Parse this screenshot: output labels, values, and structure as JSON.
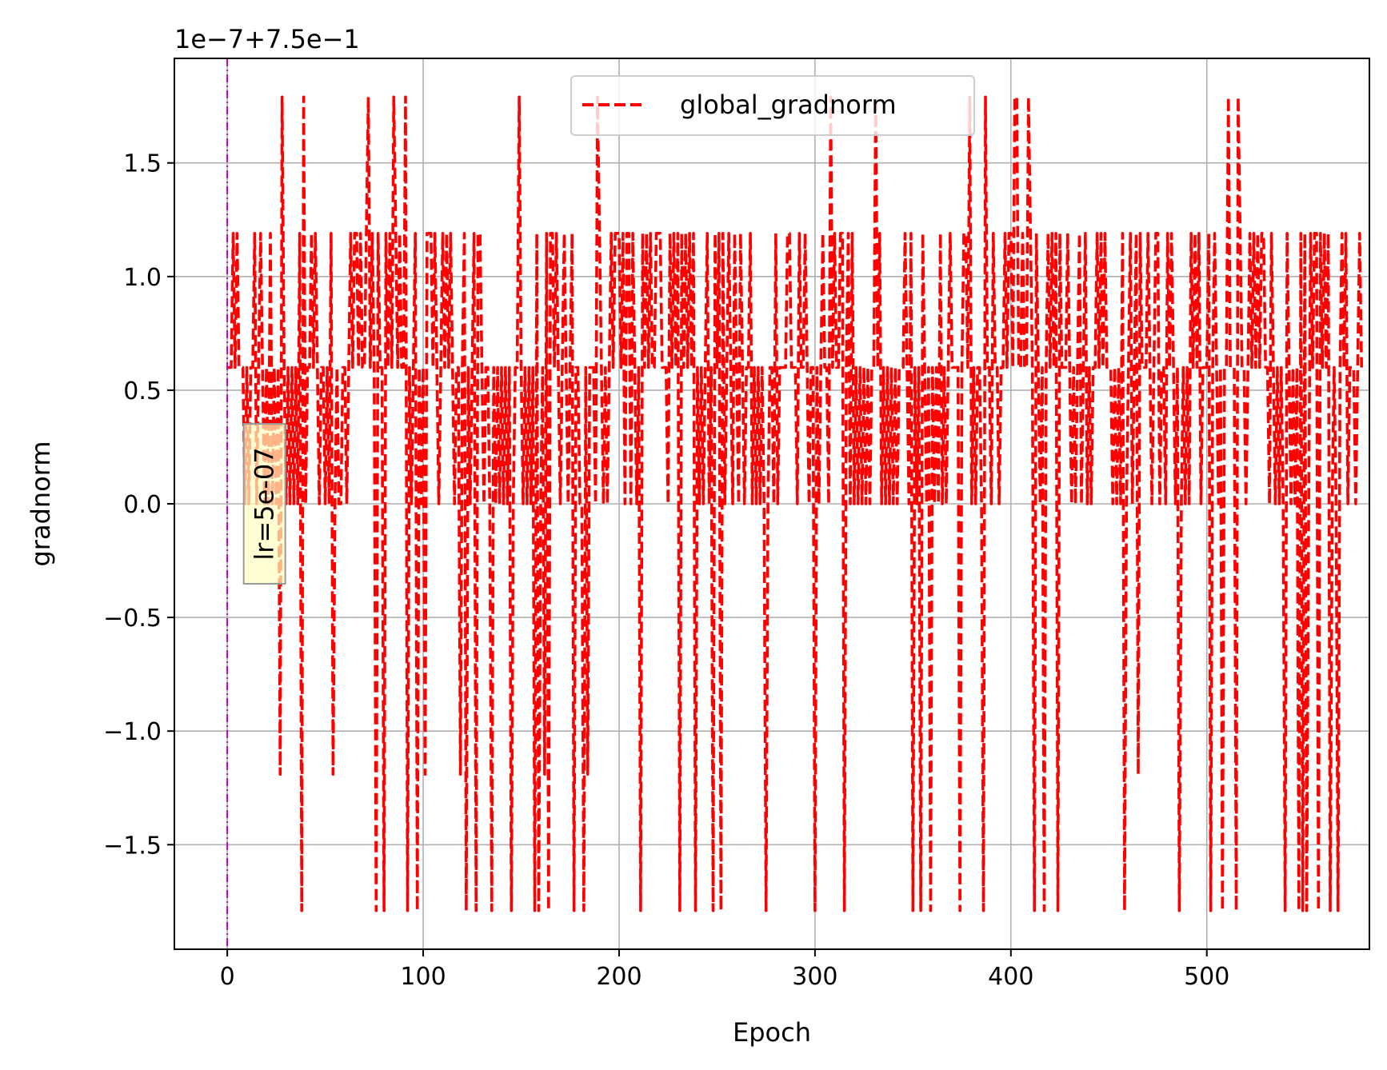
{
  "chart_data": {
    "type": "line",
    "title": "",
    "xlabel": "Epoch",
    "ylabel": "gradnorm",
    "offset_text": "1e−7+7.5e−1",
    "xlim": [
      -27,
      583
    ],
    "ylim": [
      -1.96,
      1.96
    ],
    "xticks": [
      0,
      100,
      200,
      300,
      400,
      500
    ],
    "xtick_labels": [
      "0",
      "100",
      "200",
      "300",
      "400",
      "500"
    ],
    "yticks": [
      -1.5,
      -1.0,
      -0.5,
      0.0,
      0.5,
      1.0,
      1.5
    ],
    "ytick_labels": [
      "−1.5",
      "−1.0",
      "−0.5",
      "0.0",
      "0.5",
      "1.0",
      "1.5"
    ],
    "grid": true,
    "legend_location": "upper center",
    "series": [
      {
        "name": "global_gradnorm",
        "color": "#ff0000",
        "style": "dashed",
        "note_values": "y in units of 1e-7 relative to offset 0.75; values are quantized to levels",
        "levels": [
          -1.79,
          -1.19,
          0.0,
          0.6,
          1.19,
          1.79
        ],
        "level_codes": "3334343332323342343232423231532323232405233434323323241232233234344343345343043304343543433503234032314443432343434323313403234044323320323232323023353232323040231404434323432340332203133325432323434443424424323043434334443332434340434343403232342304340423432432432334232323202332423333443332433432330323433253433440342423232323233534232323232333432403230432303232423234333303443523233205332433233434435533433543043230343434043334323234234232334343433323232402342341433343234423324343230232324343423334034323033533305433234343434433243232320432323040402434404343402320343423332343",
        "x_start": 0,
        "x_step": 1
      }
    ],
    "vline": {
      "x": 0,
      "color": "#bf00bf",
      "style": "dashdot"
    },
    "annotation": {
      "text": "lr=5e-07",
      "x": 19,
      "y": 0.0,
      "rotation": 90,
      "box_color": "#ffffc0"
    }
  }
}
